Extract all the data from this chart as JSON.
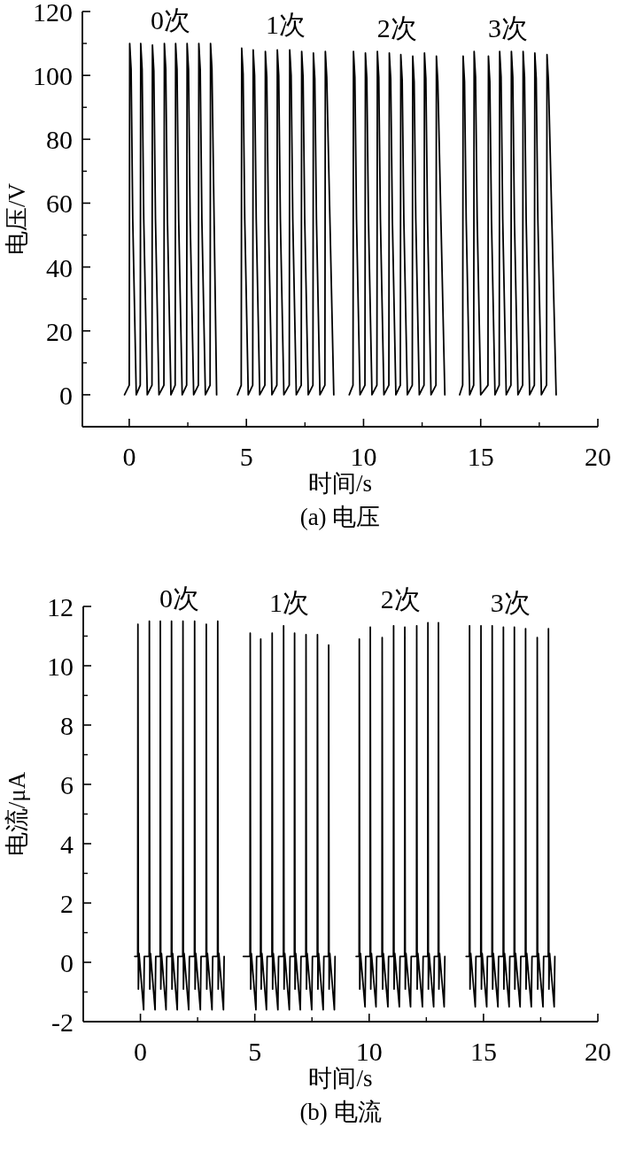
{
  "chart_data": [
    {
      "type": "line",
      "xlabel": "时间/s",
      "ylabel": "电压/V",
      "xlim": [
        -2,
        20
      ],
      "xticks": [
        0,
        5,
        10,
        15,
        20
      ],
      "ylim": [
        -10,
        120
      ],
      "yticks": [
        0,
        20,
        40,
        60,
        80,
        100,
        120
      ],
      "series": [
        {
          "name": "0次",
          "color": "#000000",
          "x": [
            -0.2,
            0.0,
            0.02,
            0.08,
            0.15,
            0.3,
            0.47,
            0.49,
            0.55,
            0.62,
            0.77,
            0.97,
            0.99,
            1.05,
            1.12,
            1.27,
            1.48,
            1.5,
            1.56,
            1.63,
            1.78,
            1.96,
            1.98,
            2.04,
            2.11,
            2.26,
            2.45,
            2.47,
            2.53,
            2.6,
            2.75,
            2.95,
            2.97,
            3.03,
            3.1,
            3.25,
            3.45,
            3.47,
            3.53,
            3.73
          ],
          "values": [
            0,
            3,
            110,
            102,
            55,
            0,
            3,
            110,
            102,
            55,
            0,
            3,
            109.5,
            101.5,
            55,
            0,
            3,
            110,
            102,
            55,
            0,
            3,
            110,
            102,
            55,
            0,
            3,
            110,
            102,
            55,
            0,
            3,
            110,
            102,
            55,
            0,
            3,
            110,
            102,
            0
          ]
        },
        {
          "name": "1次",
          "color": "#000000",
          "x": [
            4.62,
            4.78,
            4.8,
            4.86,
            4.93,
            5.08,
            5.27,
            5.29,
            5.35,
            5.42,
            5.57,
            5.79,
            5.81,
            5.87,
            5.94,
            6.09,
            6.3,
            6.32,
            6.38,
            6.45,
            6.6,
            6.83,
            6.85,
            6.91,
            6.98,
            7.13,
            7.34,
            7.36,
            7.42,
            7.49,
            7.64,
            7.84,
            7.86,
            7.92,
            7.99,
            8.14,
            8.35,
            8.37,
            8.43,
            8.73
          ],
          "values": [
            0,
            3,
            108.5,
            100.5,
            55,
            0,
            3,
            108,
            100,
            55,
            0,
            3,
            107.5,
            99.5,
            55,
            0,
            3,
            108,
            100,
            55,
            0,
            3,
            108,
            100,
            55,
            0,
            3,
            107.5,
            99.5,
            55,
            0,
            3,
            107,
            99,
            55,
            0,
            3,
            107.5,
            99.5,
            0
          ]
        },
        {
          "name": "2次",
          "color": "#000000",
          "x": [
            9.39,
            9.55,
            9.57,
            9.63,
            9.7,
            9.85,
            10.06,
            10.08,
            10.14,
            10.21,
            10.36,
            10.57,
            10.59,
            10.65,
            10.72,
            10.87,
            11.08,
            11.1,
            11.16,
            11.23,
            11.38,
            11.57,
            11.59,
            11.65,
            11.72,
            11.87,
            12.08,
            12.1,
            12.16,
            12.23,
            12.38,
            12.58,
            12.6,
            12.66,
            12.73,
            12.88,
            13.09,
            13.11,
            13.17,
            13.47
          ],
          "values": [
            0,
            3,
            107.5,
            99.5,
            55,
            0,
            3,
            107,
            99,
            55,
            0,
            3,
            107.5,
            99.5,
            55,
            0,
            3,
            107,
            99,
            55,
            0,
            3,
            106.5,
            98.5,
            55,
            0,
            3,
            106,
            98,
            55,
            0,
            3,
            107,
            99,
            55,
            0,
            3,
            106,
            98,
            0
          ]
        },
        {
          "name": "3次",
          "color": "#000000",
          "x": [
            14.1,
            14.23,
            14.25,
            14.31,
            14.38,
            14.53,
            14.7,
            14.72,
            14.78,
            14.85,
            15.0,
            15.31,
            15.33,
            15.39,
            15.46,
            15.61,
            15.79,
            15.81,
            15.87,
            15.94,
            16.09,
            16.29,
            16.31,
            16.37,
            16.44,
            16.59,
            16.79,
            16.81,
            16.87,
            16.94,
            17.09,
            17.29,
            17.31,
            17.37,
            17.44,
            17.59,
            17.81,
            17.83,
            17.89,
            18.22
          ],
          "values": [
            0,
            3,
            106,
            98,
            55,
            0,
            3,
            107.5,
            99.5,
            55,
            0,
            3,
            106,
            98,
            55,
            0,
            3,
            107.5,
            99.5,
            55,
            0,
            3,
            107.5,
            99.5,
            55,
            0,
            3,
            107.5,
            99.5,
            55,
            0,
            3,
            107,
            99,
            55,
            0,
            3,
            106.5,
            98.5,
            0
          ]
        }
      ],
      "annotations": [
        "(a) 电压"
      ]
    },
    {
      "type": "line",
      "xlabel": "时间/s",
      "ylabel": "电流/μA",
      "xlim": [
        -2.5,
        20
      ],
      "xticks": [
        0,
        5,
        10,
        15,
        20
      ],
      "ylim": [
        -2,
        12
      ],
      "yticks": [
        -2,
        0,
        2,
        4,
        6,
        8,
        10,
        12
      ],
      "series": [
        {
          "name": "0次",
          "color": "#000000",
          "x": [
            -0.25,
            -0.12,
            -0.11,
            -0.09,
            -0.06,
            0.14,
            0.17,
            0.38,
            0.39,
            0.41,
            0.44,
            0.64,
            0.67,
            0.86,
            0.87,
            0.89,
            0.92,
            1.12,
            1.15,
            1.35,
            1.36,
            1.38,
            1.41,
            1.61,
            1.64,
            1.85,
            1.86,
            1.88,
            1.91,
            2.11,
            2.14,
            2.36,
            2.37,
            2.39,
            2.42,
            2.62,
            2.65,
            2.87,
            2.88,
            2.9,
            2.93,
            3.13,
            3.16,
            3.37,
            3.38,
            3.4,
            3.43,
            3.63,
            3.66
          ],
          "values": [
            0.2,
            0.2,
            11.4,
            -0.9,
            0.3,
            -1.6,
            0.2,
            0.2,
            11.5,
            -0.9,
            0.3,
            -1.6,
            0.2,
            0.2,
            11.5,
            -0.9,
            0.3,
            -1.6,
            0.2,
            0.2,
            11.5,
            -0.9,
            0.3,
            -1.6,
            0.2,
            0.2,
            11.5,
            -0.9,
            0.3,
            -1.6,
            0.2,
            0.2,
            11.5,
            -0.9,
            0.3,
            -1.6,
            0.2,
            0.2,
            11.4,
            -0.9,
            0.3,
            -1.6,
            0.2,
            0.2,
            11.5,
            -0.9,
            0.3,
            -1.6,
            0.2
          ]
        },
        {
          "name": "1次",
          "color": "#000000",
          "x": [
            4.5,
            4.79,
            4.8,
            4.82,
            4.85,
            5.05,
            5.08,
            5.25,
            5.26,
            5.28,
            5.31,
            5.51,
            5.54,
            5.75,
            5.76,
            5.78,
            5.81,
            6.01,
            6.04,
            6.25,
            6.26,
            6.28,
            6.31,
            6.51,
            6.54,
            6.73,
            6.74,
            6.76,
            6.79,
            6.99,
            7.02,
            7.23,
            7.24,
            7.26,
            7.29,
            7.49,
            7.52,
            7.73,
            7.74,
            7.76,
            7.79,
            7.99,
            8.02,
            8.22,
            8.23,
            8.25,
            8.28,
            8.48,
            8.51
          ],
          "values": [
            0.2,
            0.2,
            11.1,
            -0.9,
            0.3,
            -1.6,
            0.2,
            0.2,
            10.9,
            -0.9,
            0.3,
            -1.6,
            0.2,
            0.2,
            11.1,
            -0.9,
            0.3,
            -1.6,
            0.2,
            0.2,
            11.35,
            -0.9,
            0.3,
            -1.6,
            0.2,
            0.2,
            11.1,
            -0.9,
            0.3,
            -1.6,
            0.2,
            0.2,
            11.05,
            -0.9,
            0.3,
            -1.6,
            0.2,
            0.2,
            11.05,
            -0.9,
            0.3,
            -1.6,
            0.2,
            0.2,
            10.7,
            -0.9,
            0.3,
            -1.6,
            0.2
          ]
        },
        {
          "name": "2次",
          "color": "#000000",
          "x": [
            9.43,
            9.56,
            9.57,
            9.59,
            9.62,
            9.82,
            9.85,
            10.04,
            10.05,
            10.07,
            10.1,
            10.3,
            10.33,
            10.56,
            10.57,
            10.59,
            10.62,
            10.82,
            10.85,
            11.06,
            11.07,
            11.09,
            11.12,
            11.32,
            11.35,
            11.55,
            11.56,
            11.58,
            11.61,
            11.81,
            11.84,
            12.07,
            12.08,
            12.1,
            12.13,
            12.33,
            12.36,
            12.56,
            12.57,
            12.59,
            12.62,
            12.82,
            12.85,
            13.02,
            13.03,
            13.05,
            13.08,
            13.28,
            13.31
          ],
          "values": [
            0.2,
            0.2,
            10.9,
            -0.9,
            0.3,
            -1.5,
            0.2,
            0.2,
            11.3,
            -0.9,
            0.3,
            -1.5,
            0.2,
            0.2,
            10.95,
            -0.9,
            0.3,
            -1.5,
            0.2,
            0.2,
            11.35,
            -0.9,
            0.3,
            -1.5,
            0.2,
            0.2,
            11.3,
            -0.9,
            0.3,
            -1.5,
            0.2,
            0.2,
            11.35,
            -0.9,
            0.3,
            -1.5,
            0.2,
            0.2,
            11.45,
            -0.9,
            0.3,
            -1.5,
            0.2,
            0.2,
            11.45,
            -0.9,
            0.3,
            -1.5,
            0.2
          ]
        },
        {
          "name": "3次",
          "color": "#000000",
          "x": [
            14.24,
            14.38,
            14.39,
            14.41,
            14.44,
            14.64,
            14.67,
            14.88,
            14.89,
            14.91,
            14.94,
            15.14,
            15.17,
            15.37,
            15.38,
            15.4,
            15.43,
            15.63,
            15.66,
            15.86,
            15.87,
            15.89,
            15.92,
            16.12,
            16.15,
            16.34,
            16.35,
            16.37,
            16.4,
            16.6,
            16.63,
            16.83,
            16.84,
            16.86,
            16.89,
            17.09,
            17.12,
            17.34,
            17.35,
            17.37,
            17.4,
            17.6,
            17.63,
            17.83,
            17.84,
            17.86,
            17.89,
            18.09,
            18.12
          ],
          "values": [
            0.2,
            0.2,
            11.35,
            -0.9,
            0.3,
            -1.5,
            0.2,
            0.2,
            11.35,
            -0.9,
            0.3,
            -1.5,
            0.2,
            0.2,
            11.35,
            -0.9,
            0.3,
            -1.5,
            0.2,
            0.2,
            11.3,
            -0.9,
            0.3,
            -1.5,
            0.2,
            0.2,
            11.3,
            -0.9,
            0.3,
            -1.5,
            0.2,
            0.2,
            11.25,
            -0.9,
            0.3,
            -1.5,
            0.2,
            0.2,
            10.95,
            -0.9,
            0.3,
            -1.5,
            0.2,
            0.2,
            11.25,
            -0.9,
            0.3,
            -1.5,
            0.2
          ]
        }
      ],
      "annotations": [
        "(b) 电流"
      ]
    }
  ]
}
